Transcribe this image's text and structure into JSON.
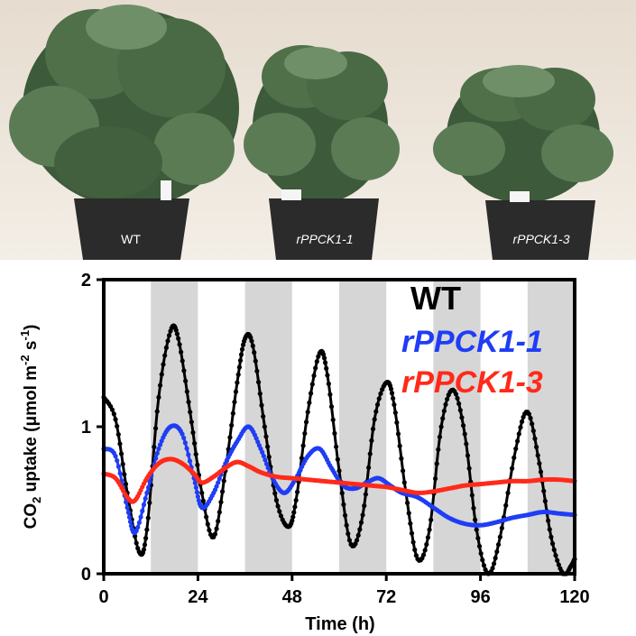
{
  "photo": {
    "labels": [
      "WT",
      "rPPCK1-1",
      "rPPCK1-3"
    ],
    "colors": {
      "wall_top": "#e6dccf",
      "wall_bottom": "#f3eee6",
      "pot": "#2b2b2b",
      "leaf_dark": "#3d5a3a",
      "leaf_light": "#6f8f68"
    }
  },
  "chart_data": {
    "type": "line",
    "xlabel": "Time (h)",
    "ylabel": "CO2 uptake (μmol m-2 s-1)",
    "ylabel_parts": {
      "a": "CO",
      "sub": "2",
      "b": " uptake (μmol m",
      "sup1": "-2",
      "c": " s",
      "sup2": "-1",
      "d": ")"
    },
    "xlim": [
      0,
      120
    ],
    "ylim": [
      0,
      2
    ],
    "xticks": [
      0,
      24,
      48,
      72,
      96,
      120
    ],
    "yticks": [
      0,
      1,
      2
    ],
    "dark_periods": [
      [
        12,
        24
      ],
      [
        36,
        48
      ],
      [
        60,
        72
      ],
      [
        84,
        96
      ],
      [
        108,
        120
      ]
    ],
    "legend": [
      "WT",
      "rPPCK1-1",
      "rPPCK1-3"
    ],
    "series": [
      {
        "name": "WT",
        "color": "#000000",
        "points": [
          [
            0,
            1.2
          ],
          [
            3,
            1.05
          ],
          [
            6,
            0.55
          ],
          [
            9,
            0.15
          ],
          [
            11,
            0.3
          ],
          [
            14,
            1.2
          ],
          [
            17,
            1.65
          ],
          [
            19,
            1.6
          ],
          [
            22,
            1.1
          ],
          [
            25,
            0.55
          ],
          [
            28,
            0.25
          ],
          [
            31,
            0.7
          ],
          [
            34,
            1.3
          ],
          [
            36,
            1.6
          ],
          [
            38,
            1.55
          ],
          [
            41,
            1.0
          ],
          [
            44,
            0.5
          ],
          [
            47,
            0.32
          ],
          [
            49,
            0.5
          ],
          [
            52,
            1.1
          ],
          [
            55,
            1.5
          ],
          [
            57,
            1.35
          ],
          [
            60,
            0.7
          ],
          [
            63,
            0.2
          ],
          [
            66,
            0.4
          ],
          [
            69,
            1.05
          ],
          [
            72,
            1.3
          ],
          [
            74,
            1.15
          ],
          [
            77,
            0.55
          ],
          [
            80,
            0.1
          ],
          [
            83,
            0.3
          ],
          [
            86,
            1.0
          ],
          [
            89,
            1.25
          ],
          [
            92,
            0.95
          ],
          [
            95,
            0.3
          ],
          [
            98,
            0.0
          ],
          [
            101,
            0.25
          ],
          [
            105,
            0.85
          ],
          [
            108,
            1.1
          ],
          [
            111,
            0.75
          ],
          [
            114,
            0.25
          ],
          [
            117,
            0.0
          ],
          [
            119,
            0.05
          ],
          [
            120,
            0.1
          ]
        ]
      },
      {
        "name": "rPPCK1-1",
        "color": "#1f3df5",
        "points": [
          [
            0,
            0.85
          ],
          [
            3,
            0.8
          ],
          [
            6,
            0.45
          ],
          [
            8,
            0.28
          ],
          [
            11,
            0.55
          ],
          [
            14,
            0.85
          ],
          [
            17,
            1.0
          ],
          [
            20,
            0.95
          ],
          [
            23,
            0.65
          ],
          [
            25,
            0.45
          ],
          [
            28,
            0.55
          ],
          [
            31,
            0.75
          ],
          [
            34,
            0.9
          ],
          [
            37,
            1.0
          ],
          [
            40,
            0.85
          ],
          [
            43,
            0.65
          ],
          [
            46,
            0.55
          ],
          [
            49,
            0.65
          ],
          [
            52,
            0.8
          ],
          [
            55,
            0.85
          ],
          [
            58,
            0.72
          ],
          [
            61,
            0.6
          ],
          [
            64,
            0.58
          ],
          [
            67,
            0.62
          ],
          [
            70,
            0.65
          ],
          [
            73,
            0.6
          ],
          [
            76,
            0.55
          ],
          [
            80,
            0.52
          ],
          [
            84,
            0.45
          ],
          [
            88,
            0.38
          ],
          [
            92,
            0.34
          ],
          [
            96,
            0.33
          ],
          [
            100,
            0.35
          ],
          [
            104,
            0.38
          ],
          [
            108,
            0.4
          ],
          [
            112,
            0.42
          ],
          [
            116,
            0.41
          ],
          [
            120,
            0.4
          ]
        ]
      },
      {
        "name": "rPPCK1-3",
        "color": "#ff2a1a",
        "points": [
          [
            0,
            0.68
          ],
          [
            3,
            0.65
          ],
          [
            6,
            0.52
          ],
          [
            8,
            0.5
          ],
          [
            11,
            0.65
          ],
          [
            14,
            0.75
          ],
          [
            17,
            0.78
          ],
          [
            20,
            0.75
          ],
          [
            23,
            0.68
          ],
          [
            25,
            0.62
          ],
          [
            28,
            0.66
          ],
          [
            31,
            0.72
          ],
          [
            34,
            0.76
          ],
          [
            37,
            0.73
          ],
          [
            40,
            0.69
          ],
          [
            44,
            0.66
          ],
          [
            48,
            0.65
          ],
          [
            52,
            0.64
          ],
          [
            56,
            0.63
          ],
          [
            60,
            0.62
          ],
          [
            64,
            0.61
          ],
          [
            68,
            0.6
          ],
          [
            72,
            0.59
          ],
          [
            76,
            0.57
          ],
          [
            80,
            0.55
          ],
          [
            84,
            0.56
          ],
          [
            88,
            0.58
          ],
          [
            92,
            0.6
          ],
          [
            96,
            0.61
          ],
          [
            100,
            0.62
          ],
          [
            104,
            0.63
          ],
          [
            108,
            0.63
          ],
          [
            112,
            0.64
          ],
          [
            116,
            0.64
          ],
          [
            120,
            0.63
          ]
        ]
      }
    ]
  }
}
